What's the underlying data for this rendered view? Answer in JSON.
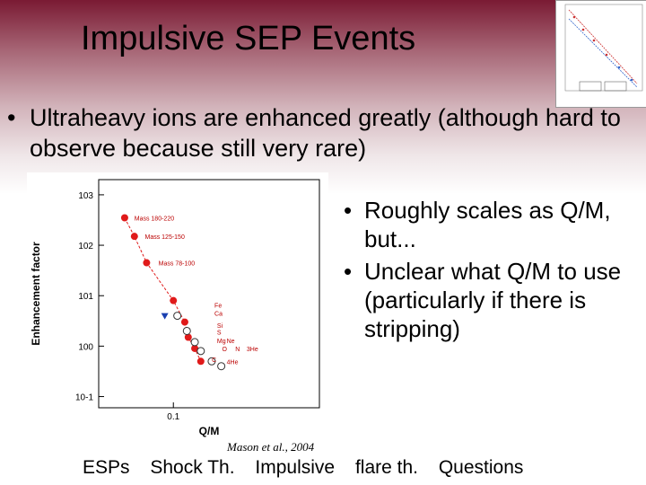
{
  "slide": {
    "title": "Impulsive SEP Events",
    "bullet_main": "Ultraheavy ions are enhanced greatly (although hard to observe because still very rare)",
    "right_bullets": [
      "Roughly scales as Q/M, but...",
      "Unclear what Q/M to use (particularly if there is stripping)"
    ],
    "caption": "Mason et al., 2004",
    "nav": [
      "ESPs",
      "Shock Th.",
      "Impulsive",
      "flare th.",
      "Questions"
    ],
    "bullet_glyph": "•"
  },
  "chart_data": {
    "type": "scatter",
    "title": "",
    "xlabel": "Q/M",
    "ylabel": "Enhancement factor",
    "xscale": "log",
    "yscale": "log",
    "xlim": [
      0.04,
      0.6
    ],
    "ylim": [
      0.06,
      2000
    ],
    "x_ticks": [
      "0.1"
    ],
    "y_ticks": [
      "10^-1",
      "10^0",
      "10^1",
      "10^2",
      "10^3"
    ],
    "annotations": [
      "Mass 180-220",
      "Mass 125-150",
      "Mass 78-100",
      "Fe",
      "Ca",
      "Si",
      "S",
      "Mg",
      "Ne",
      "O",
      "N",
      "C",
      "3He",
      "4He"
    ],
    "series": [
      {
        "marker": "filled-circle-red",
        "points": [
          [
            0.055,
            350
          ],
          [
            0.062,
            150
          ],
          [
            0.072,
            45
          ],
          [
            0.1,
            8
          ],
          [
            0.115,
            3
          ],
          [
            0.12,
            1.5
          ],
          [
            0.13,
            0.9
          ],
          [
            0.14,
            0.5
          ]
        ]
      },
      {
        "marker": "open-circle",
        "points": [
          [
            0.105,
            4
          ],
          [
            0.118,
            2
          ],
          [
            0.13,
            1.2
          ],
          [
            0.14,
            0.8
          ],
          [
            0.16,
            0.5
          ],
          [
            0.18,
            0.4
          ]
        ]
      },
      {
        "marker": "triangle-blue",
        "points": [
          [
            0.09,
            4
          ]
        ]
      }
    ],
    "colors": {
      "filled": "#e01a1a",
      "line": "#e01a1a",
      "triangle": "#1a3fb0"
    }
  }
}
